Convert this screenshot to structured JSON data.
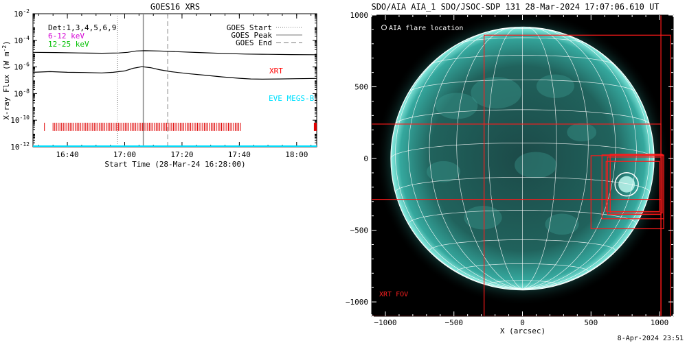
{
  "chart_data": [
    {
      "type": "line",
      "title": "GOES16 XRS",
      "xlabel": "Start Time (28-Mar-24 16:28:00)",
      "ylabel": "X-ray Flux (W m",
      "ylabel_sup": "-2",
      "ylabel_close": ")",
      "y_scale": "log",
      "ylim_exp": [
        -12,
        -2
      ],
      "y_tick_base": "10",
      "y_tick_exps": [
        "-12",
        "-10",
        "-8",
        "-6",
        "-4",
        "-2"
      ],
      "xlim_min": [
        0,
        99
      ],
      "x_ticks": [
        {
          "min": 12,
          "label": "16:40"
        },
        {
          "min": 32,
          "label": "17:00"
        },
        {
          "min": 52,
          "label": "17:20"
        },
        {
          "min": 72,
          "label": "17:40"
        },
        {
          "min": 92,
          "label": "18:00"
        }
      ],
      "legend": {
        "top_left": [
          {
            "text": "Det:1,3,4,5,6,9",
            "color": "#000000"
          },
          {
            "text": "6-12 keV",
            "color": "#d400d4"
          },
          {
            "text": "12-25 keV",
            "color": "#00c000"
          }
        ],
        "top_right": [
          {
            "text": "GOES Start",
            "style": "dotted"
          },
          {
            "text": "GOES Peak",
            "style": "solid"
          },
          {
            "text": "GOES End",
            "style": "dashed"
          }
        ]
      },
      "markers": {
        "goes_start_min": 29.5,
        "goes_peak_min": 38.5,
        "goes_end_min": 47
      },
      "series": [
        {
          "name": "",
          "color": "#000000",
          "points": [
            [
              0,
              -4.9
            ],
            [
              8,
              -4.92
            ],
            [
              16,
              -4.95
            ],
            [
              24,
              -4.97
            ],
            [
              30,
              -4.95
            ],
            [
              33,
              -4.9
            ],
            [
              36,
              -4.8
            ],
            [
              39,
              -4.78
            ],
            [
              44,
              -4.8
            ],
            [
              50,
              -4.85
            ],
            [
              58,
              -4.92
            ],
            [
              66,
              -4.98
            ],
            [
              74,
              -5.03
            ],
            [
              82,
              -5.05
            ],
            [
              90,
              -5.07
            ],
            [
              99,
              -5.08
            ]
          ]
        },
        {
          "name": "",
          "color": "#000000",
          "points": [
            [
              0,
              -6.4
            ],
            [
              6,
              -6.35
            ],
            [
              12,
              -6.4
            ],
            [
              18,
              -6.42
            ],
            [
              24,
              -6.45
            ],
            [
              28,
              -6.4
            ],
            [
              32,
              -6.3
            ],
            [
              35,
              -6.1
            ],
            [
              38,
              -5.98
            ],
            [
              41,
              -6.05
            ],
            [
              44,
              -6.2
            ],
            [
              48,
              -6.35
            ],
            [
              54,
              -6.5
            ],
            [
              60,
              -6.62
            ],
            [
              66,
              -6.75
            ],
            [
              72,
              -6.85
            ],
            [
              76,
              -6.9
            ],
            [
              80,
              -6.92
            ],
            [
              86,
              -6.9
            ],
            [
              92,
              -6.88
            ],
            [
              99,
              -6.86
            ]
          ]
        },
        {
          "name": "",
          "color": "#00e0ff",
          "points": [
            [
              0,
              -11.95
            ],
            [
              99,
              -11.95
            ]
          ]
        }
      ],
      "xrt_label": "XRT",
      "eve_label": "EVE MEGS-B",
      "xrt_ticks_range_min": [
        7,
        73
      ],
      "xrt_single_min": 4,
      "xrt_block_min": 98.5,
      "xrt_level_exp": -10.5
    },
    {
      "type": "image",
      "title": "SDO/AIA AIA_1 SDO/JSOC-SDP 131 28-Mar-2024 17:07:06.610 UT",
      "xlabel": "X (arcsec)",
      "xlim": [
        -1100,
        1100
      ],
      "ylim": [
        -1100,
        1000
      ],
      "x_ticks": [
        -1000,
        -500,
        0,
        500,
        1000
      ],
      "y_ticks": [
        1000,
        500,
        0,
        -500,
        -1000
      ],
      "solar_radius_arcsec": 960,
      "flare_circle": {
        "x": 760,
        "y": -180,
        "r": 85
      },
      "legend_text": "AIA flare location",
      "fov_label": "XRT FOV",
      "fov_boxes": [
        {
          "x0": -1110,
          "x1": 1010,
          "y0": -1100,
          "y1": 1025
        },
        {
          "x0": -280,
          "x1": 1080,
          "y0": -1100,
          "y1": 860
        },
        {
          "x0": -1110,
          "x1": 1010,
          "y0": -1100,
          "y1": 240
        },
        {
          "x0": -1110,
          "x1": 1010,
          "y0": -1100,
          "y1": -285
        },
        {
          "x0": 500,
          "x1": 1030,
          "y0": -490,
          "y1": 20
        },
        {
          "x0": 580,
          "x1": 1030,
          "y0": -420,
          "y1": 25
        },
        {
          "x0": 610,
          "x1": 1000,
          "y0": -370,
          "y1": -20
        },
        {
          "x0": 640,
          "x1": 1020,
          "y0": -380,
          "y1": 30
        },
        {
          "x0": 620,
          "x1": 1010,
          "y0": -390,
          "y1": 10
        }
      ],
      "timestamp": "8-Apr-2024 23:51"
    }
  ]
}
